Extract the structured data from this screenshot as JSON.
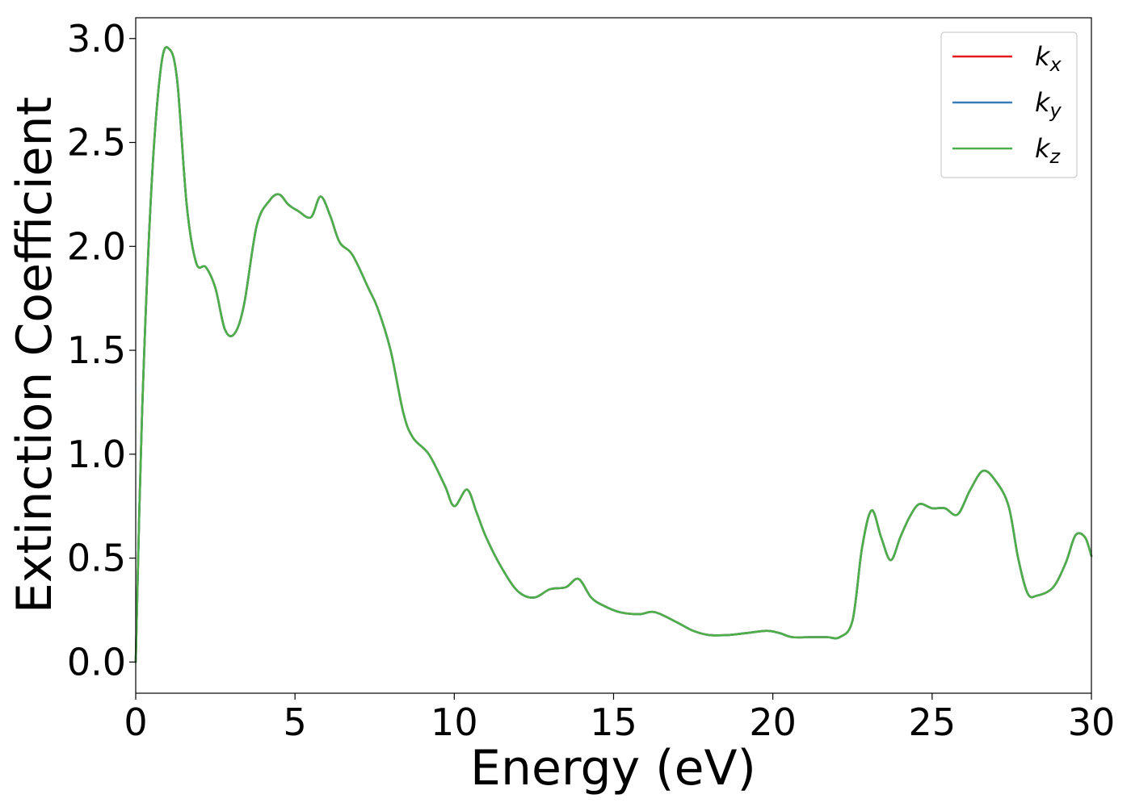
{
  "chart_data": {
    "type": "line",
    "xlabel": "Energy (eV)",
    "ylabel": "Extinction Coefficient",
    "xlim": [
      0,
      30
    ],
    "ylim": [
      -0.15,
      3.1
    ],
    "xticks": [
      0,
      5,
      10,
      15,
      20,
      25,
      30
    ],
    "xtick_labels": [
      "0",
      "5",
      "10",
      "15",
      "20",
      "25",
      "30"
    ],
    "yticks": [
      0.0,
      0.5,
      1.0,
      1.5,
      2.0,
      2.5,
      3.0
    ],
    "ytick_labels": [
      "0.0",
      "0.5",
      "1.0",
      "1.5",
      "2.0",
      "2.5",
      "3.0"
    ],
    "grid": false,
    "legend_position": "top-right",
    "x": [
      0,
      0.2,
      0.5,
      0.8,
      1.05,
      1.3,
      1.6,
      1.9,
      2.2,
      2.5,
      2.8,
      3.1,
      3.4,
      3.8,
      4.2,
      4.5,
      4.8,
      5.1,
      5.5,
      5.8,
      6.1,
      6.4,
      6.8,
      7.3,
      7.6,
      8.0,
      8.4,
      8.7,
      9.2,
      9.7,
      10.0,
      10.4,
      10.7,
      11.0,
      11.5,
      12.0,
      12.5,
      13.0,
      13.5,
      13.9,
      14.3,
      14.7,
      15.2,
      15.8,
      16.3,
      17.0,
      17.5,
      18.0,
      18.6,
      19.2,
      19.8,
      20.2,
      20.6,
      21.2,
      21.7,
      22.1,
      22.5,
      22.8,
      23.1,
      23.4,
      23.7,
      24.0,
      24.3,
      24.6,
      25.0,
      25.4,
      25.8,
      26.2,
      26.6,
      27.0,
      27.4,
      27.7,
      28.0,
      28.3,
      28.8,
      29.2,
      29.5,
      29.8,
      30.0
    ],
    "series": [
      {
        "name": "k_x",
        "label_main": "k",
        "label_sub": "x",
        "color": "#e41a1c",
        "y": [
          0.0,
          1.2,
          2.3,
          2.87,
          2.95,
          2.8,
          2.2,
          1.92,
          1.9,
          1.8,
          1.6,
          1.58,
          1.72,
          2.1,
          2.22,
          2.25,
          2.2,
          2.17,
          2.14,
          2.24,
          2.15,
          2.02,
          1.96,
          1.8,
          1.7,
          1.5,
          1.2,
          1.08,
          1.0,
          0.85,
          0.75,
          0.83,
          0.72,
          0.6,
          0.45,
          0.34,
          0.31,
          0.35,
          0.36,
          0.4,
          0.31,
          0.27,
          0.24,
          0.23,
          0.24,
          0.19,
          0.15,
          0.13,
          0.13,
          0.14,
          0.15,
          0.14,
          0.12,
          0.12,
          0.12,
          0.12,
          0.2,
          0.55,
          0.73,
          0.6,
          0.49,
          0.6,
          0.7,
          0.76,
          0.74,
          0.74,
          0.71,
          0.83,
          0.92,
          0.87,
          0.75,
          0.5,
          0.33,
          0.32,
          0.36,
          0.48,
          0.61,
          0.6,
          0.51
        ]
      },
      {
        "name": "k_y",
        "label_main": "k",
        "label_sub": "y",
        "color": "#377eb8",
        "y": [
          0.0,
          1.2,
          2.3,
          2.87,
          2.95,
          2.8,
          2.2,
          1.92,
          1.9,
          1.8,
          1.6,
          1.58,
          1.72,
          2.1,
          2.22,
          2.25,
          2.2,
          2.17,
          2.14,
          2.24,
          2.15,
          2.02,
          1.96,
          1.8,
          1.7,
          1.5,
          1.2,
          1.08,
          1.0,
          0.85,
          0.75,
          0.83,
          0.72,
          0.6,
          0.45,
          0.34,
          0.31,
          0.35,
          0.36,
          0.4,
          0.31,
          0.27,
          0.24,
          0.23,
          0.24,
          0.19,
          0.15,
          0.13,
          0.13,
          0.14,
          0.15,
          0.14,
          0.12,
          0.12,
          0.12,
          0.12,
          0.2,
          0.55,
          0.73,
          0.6,
          0.49,
          0.6,
          0.7,
          0.76,
          0.74,
          0.74,
          0.71,
          0.83,
          0.92,
          0.87,
          0.75,
          0.5,
          0.33,
          0.32,
          0.36,
          0.48,
          0.61,
          0.6,
          0.51
        ]
      },
      {
        "name": "k_z",
        "label_main": "k",
        "label_sub": "z",
        "color": "#4daf4a",
        "y": [
          0.0,
          1.2,
          2.3,
          2.87,
          2.95,
          2.8,
          2.2,
          1.92,
          1.9,
          1.8,
          1.6,
          1.58,
          1.72,
          2.1,
          2.22,
          2.25,
          2.2,
          2.17,
          2.14,
          2.24,
          2.15,
          2.02,
          1.96,
          1.8,
          1.7,
          1.5,
          1.2,
          1.08,
          1.0,
          0.85,
          0.75,
          0.83,
          0.72,
          0.6,
          0.45,
          0.34,
          0.31,
          0.35,
          0.36,
          0.4,
          0.31,
          0.27,
          0.24,
          0.23,
          0.24,
          0.19,
          0.15,
          0.13,
          0.13,
          0.14,
          0.15,
          0.14,
          0.12,
          0.12,
          0.12,
          0.12,
          0.2,
          0.55,
          0.73,
          0.6,
          0.49,
          0.6,
          0.7,
          0.76,
          0.74,
          0.74,
          0.71,
          0.83,
          0.92,
          0.87,
          0.75,
          0.5,
          0.33,
          0.32,
          0.36,
          0.48,
          0.61,
          0.6,
          0.51
        ]
      }
    ]
  }
}
